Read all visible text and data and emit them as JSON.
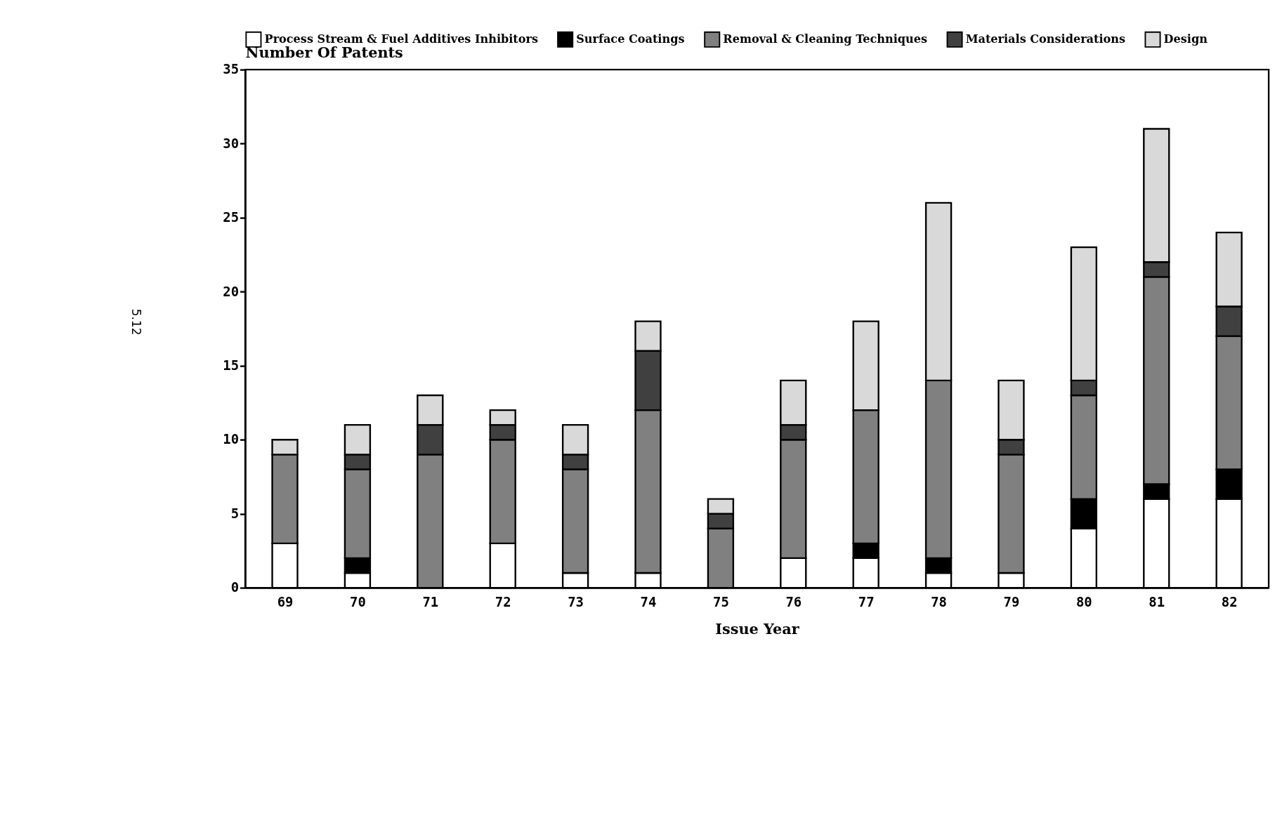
{
  "chart_data": {
    "type": "bar",
    "stacked": true,
    "xlabel": "Issue Year",
    "ylabel": "Number Of Patents",
    "categories": [
      "69",
      "70",
      "71",
      "72",
      "73",
      "74",
      "75",
      "76",
      "77",
      "78",
      "79",
      "80",
      "81",
      "82"
    ],
    "series": [
      {
        "name": "Process Stream & Fuel Additives Inhibitors",
        "color": "#ffffff",
        "values": [
          3,
          1,
          0,
          3,
          1,
          1,
          0,
          2,
          2,
          1,
          1,
          4,
          6,
          6
        ]
      },
      {
        "name": "Surface Coatings",
        "color": "#000000",
        "values": [
          0,
          1,
          0,
          0,
          0,
          0,
          0,
          0,
          1,
          1,
          0,
          2,
          1,
          2
        ]
      },
      {
        "name": "Removal & Cleaning Techniques",
        "color": "#808080",
        "values": [
          6,
          6,
          9,
          7,
          7,
          11,
          4,
          8,
          9,
          12,
          8,
          7,
          14,
          9
        ]
      },
      {
        "name": "Materials Considerations",
        "color": "#404040",
        "values": [
          0,
          1,
          2,
          1,
          1,
          4,
          1,
          1,
          0,
          0,
          1,
          1,
          1,
          2
        ]
      },
      {
        "name": "Design",
        "color": "#d9d9d9",
        "values": [
          1,
          2,
          2,
          1,
          2,
          2,
          1,
          3,
          6,
          12,
          4,
          9,
          9,
          5
        ]
      }
    ],
    "ylim": [
      0,
      35
    ],
    "yticks": [
      0,
      5,
      10,
      15,
      20,
      25,
      30,
      35
    ],
    "grid": false,
    "legend": "top",
    "annotations": [
      "5.12"
    ]
  }
}
